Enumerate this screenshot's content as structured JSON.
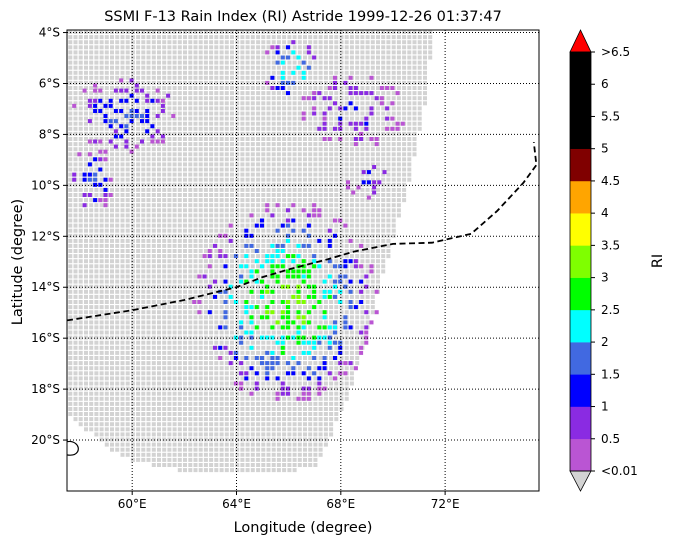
{
  "chart_data": {
    "type": "heatmap",
    "title": "SSMI F-13 Rain Index (RI) Astride 1999-12-26 01:37:47",
    "xlabel": "Longitude (degree)",
    "ylabel": "Latitude (degree)",
    "colorbar_label": "RI",
    "xlim": [
      57.5,
      75.6
    ],
    "ylim": [
      -22.0,
      -3.9
    ],
    "x_ticks": [
      {
        "value": 60,
        "label": "60°E"
      },
      {
        "value": 64,
        "label": "64°E"
      },
      {
        "value": 68,
        "label": "68°E"
      },
      {
        "value": 72,
        "label": "72°E"
      }
    ],
    "y_ticks": [
      {
        "value": -4,
        "label": "4°S"
      },
      {
        "value": -6,
        "label": "6°S"
      },
      {
        "value": -8,
        "label": "8°S"
      },
      {
        "value": -10,
        "label": "10°S"
      },
      {
        "value": -12,
        "label": "12°S"
      },
      {
        "value": -14,
        "label": "14°S"
      },
      {
        "value": -16,
        "label": "16°S"
      },
      {
        "value": -18,
        "label": "18°S"
      },
      {
        "value": -20,
        "label": "20°S"
      }
    ],
    "grid": true,
    "grid_style": "dotted",
    "colorbar": {
      "extend": "both",
      "under_color": "#d3d3d3",
      "over_color": "#ff0000",
      "levels": [
        {
          "label": "<0.01",
          "color": "#ba55d3"
        },
        {
          "label": "0.5",
          "color": "#8a2be2"
        },
        {
          "label": "1",
          "color": "#0000ff"
        },
        {
          "label": "1.5",
          "color": "#4169e1"
        },
        {
          "label": "2",
          "color": "#00ffff"
        },
        {
          "label": "2.5",
          "color": "#00ff00"
        },
        {
          "label": "3",
          "color": "#7fff00"
        },
        {
          "label": "3.5",
          "color": "#ffff00"
        },
        {
          "label": "4",
          "color": "#ffa500"
        },
        {
          "label": "4.5",
          "color": "#800000"
        },
        {
          "label": "5",
          "color": "#000000"
        },
        {
          "label": "5.5",
          "color": "#000000"
        },
        {
          "label": "6",
          "color": "#000000"
        },
        {
          "label": ">6.5",
          "color": null
        }
      ]
    },
    "storm_track": {
      "style": "dashed",
      "color": "#000000",
      "points": [
        [
          57.5,
          -15.3
        ],
        [
          60.0,
          -14.9
        ],
        [
          62.0,
          -14.5
        ],
        [
          64.0,
          -14.0
        ],
        [
          65.0,
          -13.6
        ],
        [
          66.0,
          -13.3
        ],
        [
          67.5,
          -12.9
        ],
        [
          68.5,
          -12.6
        ],
        [
          70.0,
          -12.3
        ],
        [
          71.5,
          -12.25
        ],
        [
          73.0,
          -11.9
        ],
        [
          74.0,
          -11.0
        ],
        [
          75.0,
          -9.9
        ],
        [
          75.5,
          -9.2
        ],
        [
          75.4,
          -8.3
        ]
      ]
    },
    "swath": {
      "background_class": "<0.01 (light gray)",
      "left_edge": [
        [
          57.5,
          -22.0
        ],
        [
          57.5,
          -3.9
        ]
      ],
      "right_edge": [
        [
          71.4,
          -3.9
        ],
        [
          71.3,
          -6.0
        ],
        [
          70.5,
          -10.0
        ],
        [
          69.4,
          -14.0
        ],
        [
          68.3,
          -18.0
        ],
        [
          67.0,
          -21.0
        ]
      ],
      "bottom_edge": [
        [
          57.5,
          -19.0
        ],
        [
          59.5,
          -20.6
        ],
        [
          62.0,
          -21.2
        ],
        [
          64.5,
          -21.3
        ],
        [
          67.0,
          -21.0
        ]
      ]
    },
    "rain_cells": [
      {
        "region": "north",
        "lon": [
          64.9,
          67.2
        ],
        "lat": [
          -6.6,
          -4.1
        ],
        "peak_ri": 2.5
      },
      {
        "region": "northwest",
        "lon": [
          57.5,
          61.8
        ],
        "lat": [
          -8.8,
          -5.6
        ],
        "peak_ri": 1.5
      },
      {
        "region": "west",
        "lon": [
          57.5,
          59.3
        ],
        "lat": [
          -11.0,
          -8.3
        ],
        "peak_ri": 1.5
      },
      {
        "region": "northeast",
        "lon": [
          66.3,
          70.5
        ],
        "lat": [
          -8.5,
          -5.5
        ],
        "peak_ri": 1.0
      },
      {
        "region": "east",
        "lon": [
          68.0,
          70.0
        ],
        "lat": [
          -10.5,
          -9.0
        ],
        "peak_ri": 1.0
      },
      {
        "region": "central",
        "lon": [
          62.3,
          69.4
        ],
        "lat": [
          -18.5,
          -10.5
        ],
        "peak_ri": 3.0
      }
    ],
    "coastline": {
      "lon": 57.6,
      "lat": -20.3
    }
  }
}
